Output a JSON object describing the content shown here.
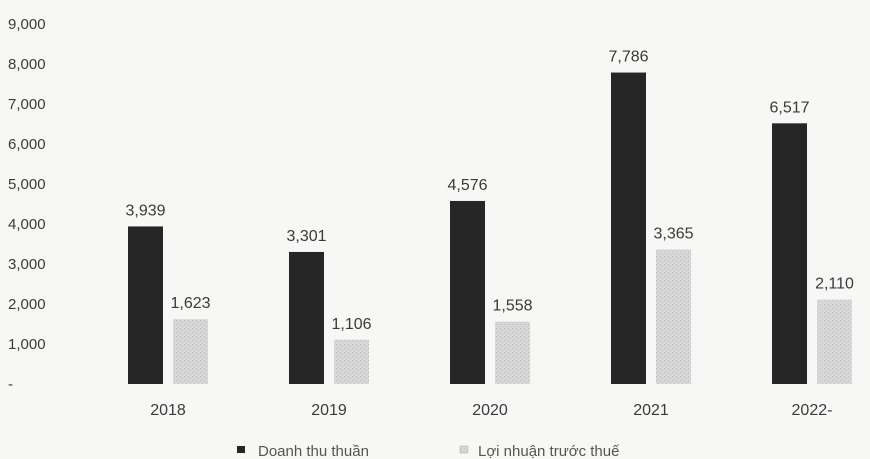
{
  "chart_data": {
    "type": "bar",
    "title": "",
    "xlabel": "",
    "ylabel": "",
    "categories": [
      "2018",
      "2019",
      "2020",
      "2021",
      "2022-"
    ],
    "series": [
      {
        "name": "Doanh thu thuần",
        "values": [
          3939,
          3301,
          4576,
          7786,
          6517
        ],
        "labels": [
          "3,939",
          "3,301",
          "4,576",
          "7,786",
          "6,517"
        ],
        "color": "#262626"
      },
      {
        "name": "Lợi nhuận trước thuế",
        "values": [
          1623,
          1106,
          1558,
          3365,
          2110
        ],
        "labels": [
          "1,623",
          "1,106",
          "1,558",
          "3,365",
          "2,110"
        ],
        "color": "#d6d6d6"
      }
    ],
    "ylim": [
      0,
      9000
    ],
    "yticks": [
      0,
      1000,
      2000,
      3000,
      4000,
      5000,
      6000,
      7000,
      8000,
      9000
    ],
    "ytick_labels": [
      "-",
      "1,000",
      "2,000",
      "3,000",
      "4,000",
      "5,000",
      "6,000",
      "7,000",
      "8,000",
      "9,000"
    ],
    "grid": false,
    "legend_position": "bottom-center"
  }
}
